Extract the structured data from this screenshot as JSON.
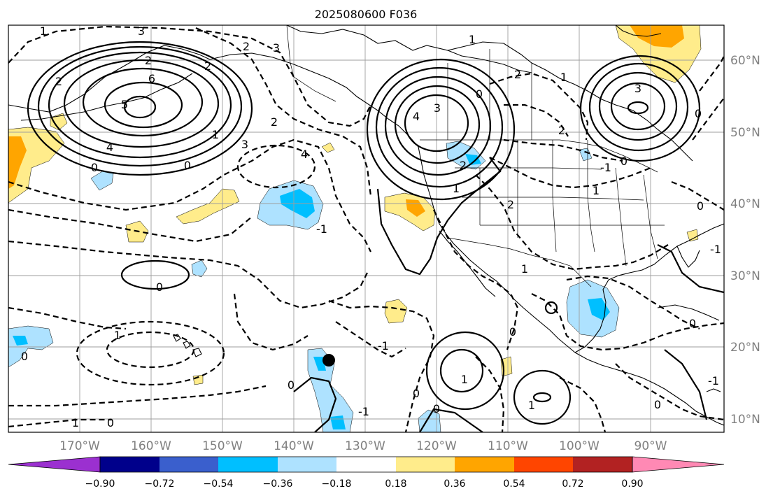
{
  "title": "2025080600 F036",
  "longitude_labels": [
    "170°W",
    "160°W",
    "150°W",
    "140°W",
    "130°W",
    "120°W",
    "110°W",
    "100°W",
    "90°W"
  ],
  "latitude_labels": [
    "60°N",
    "50°N",
    "40°N",
    "30°N",
    "20°N",
    "10°N"
  ],
  "colorbar": {
    "tick_labels": [
      "−0.90",
      "−0.72",
      "−0.54",
      "−0.36",
      "−0.18",
      "0.18",
      "0.36",
      "0.54",
      "0.72",
      "0.90"
    ],
    "colors": [
      "#9b30d0",
      "#00008b",
      "#3a5fcd",
      "#00bfff",
      "#aee2ff",
      "#ffffff",
      "#ffec8b",
      "#ffa500",
      "#ff4500",
      "#b22222",
      "#ff89b4"
    ]
  },
  "contour_labels": [
    "1",
    "3",
    "2",
    "3",
    "2",
    "6",
    "5",
    "2",
    "4",
    "0",
    "1",
    "2",
    "3",
    "4",
    "2",
    "0",
    "-1",
    "4",
    "3",
    "2",
    "0",
    "0",
    "1",
    "1",
    "0",
    "0",
    "2",
    "1",
    "-1",
    "1",
    "2",
    "3",
    "0",
    "-1",
    "2",
    "1",
    "0",
    "1",
    "0",
    "0",
    "-1",
    "-1",
    "0",
    "1",
    "0",
    "1",
    "0",
    "-1",
    "0",
    "0",
    "1"
  ],
  "marker": {
    "name": "station-marker",
    "color": "#000000"
  }
}
